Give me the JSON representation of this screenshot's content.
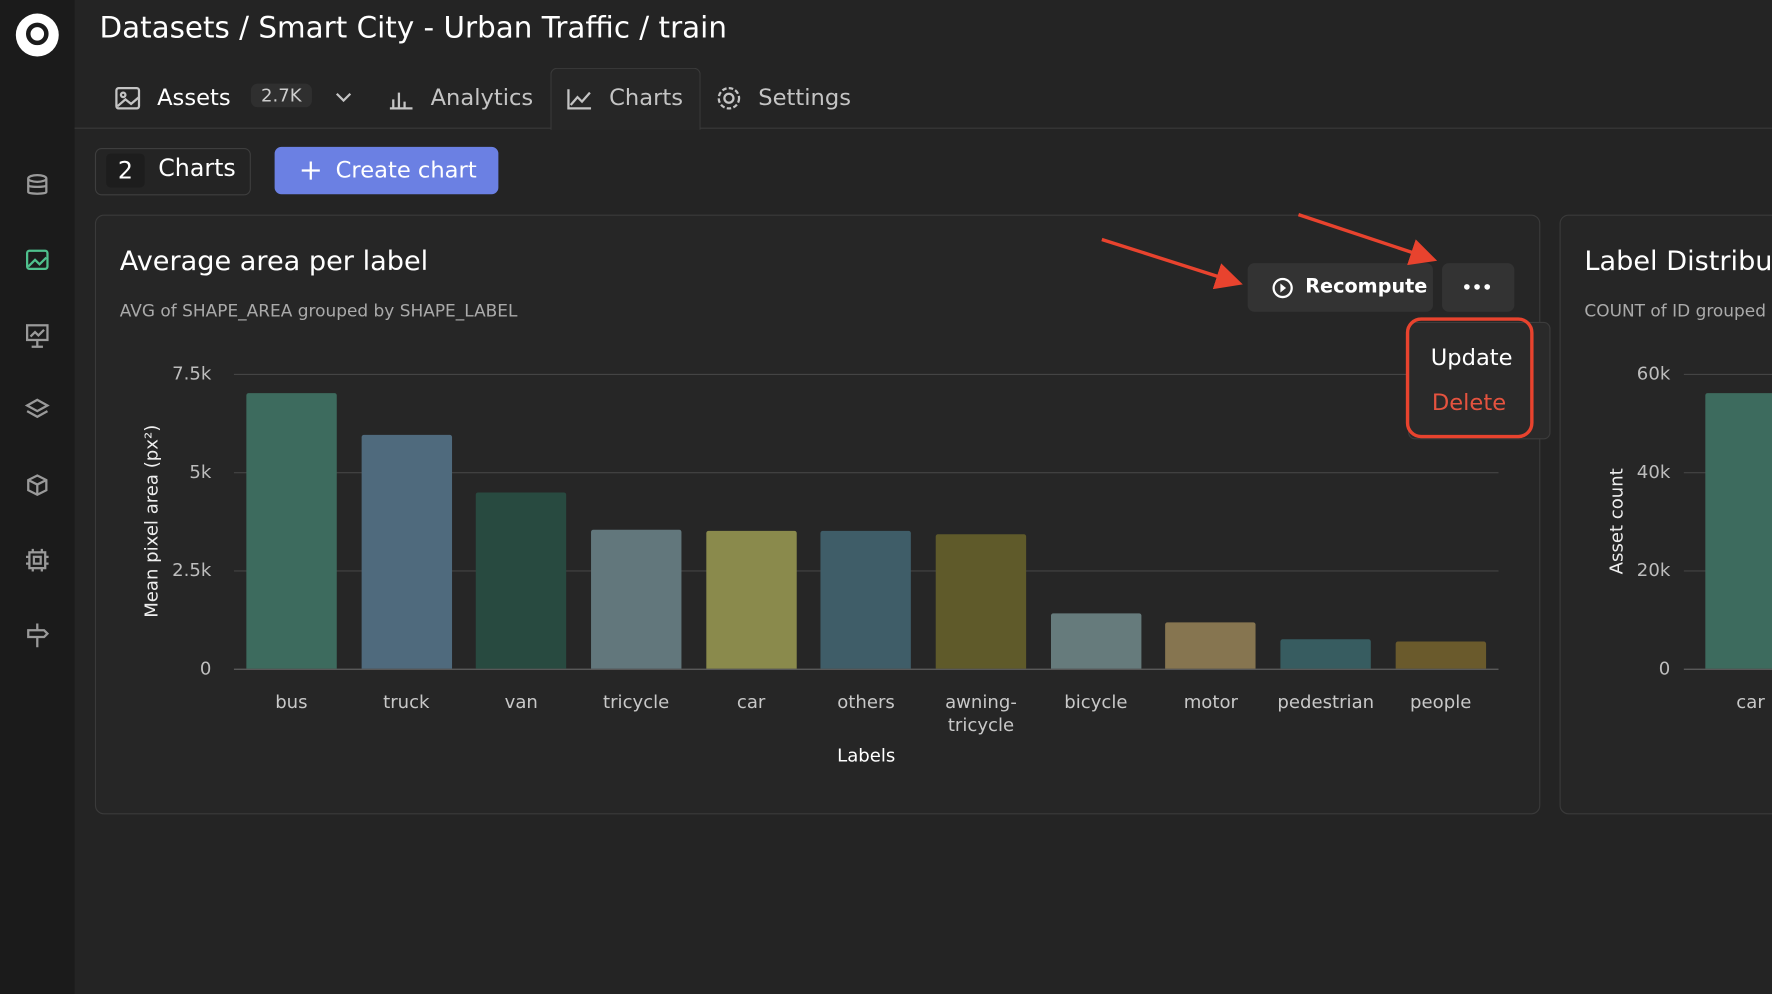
{
  "header": {
    "title": "Datasets / Smart City - Urban Traffic / train"
  },
  "tabs": [
    {
      "label": "Assets",
      "badge": "2.7K"
    },
    {
      "label": "Analytics"
    },
    {
      "label": "Charts"
    },
    {
      "label": "Settings"
    }
  ],
  "toolbar": {
    "count": 2,
    "count_label": "Charts",
    "create_button": "Create chart"
  },
  "menu": {
    "recompute": "Recompute",
    "items": [
      "Update",
      "Delete"
    ]
  },
  "chart_data": [
    {
      "type": "bar",
      "title": "Average area per label",
      "subtitle": "AVG of SHAPE_AREA grouped by SHAPE_LABEL",
      "x_label": "Labels",
      "y_label": "Mean pixel area (px²)",
      "categories": [
        "bus",
        "truck",
        "van",
        "tricycle",
        "car",
        "others",
        "awning-tricycle",
        "bicycle",
        "motor",
        "pedestrian",
        "people"
      ],
      "values": [
        7000,
        5950,
        4480,
        3530,
        3520,
        3500,
        3420,
        1410,
        1180,
        750,
        690
      ],
      "colors": [
        "#3d6b5e",
        "#4f6a7d",
        "#284a40",
        "#62777c",
        "#8a8a4c",
        "#3f5d68",
        "#5f5a2a",
        "#667b7c",
        "#867550",
        "#375c60",
        "#6a5a2c"
      ],
      "ylim": [
        0,
        7500
      ],
      "yticks": [
        0,
        {
          "value": 2500,
          "label": "2.5k"
        },
        {
          "value": 5000,
          "label": "5k"
        },
        {
          "value": 7500,
          "label": "7.5k"
        }
      ],
      "grid": true
    },
    {
      "type": "bar",
      "title": "Label Distribut",
      "subtitle": "COUNT of ID grouped b",
      "y_label": "Asset count",
      "categories": [
        "car"
      ],
      "values": [
        56000
      ],
      "colors": [
        "#3d6b5e"
      ],
      "ylim": [
        0,
        60000
      ],
      "yticks": [
        0,
        {
          "value": 20000,
          "label": "20k"
        },
        {
          "value": 40000,
          "label": "40k"
        },
        {
          "value": 60000,
          "label": "60k"
        }
      ],
      "grid": true
    }
  ]
}
